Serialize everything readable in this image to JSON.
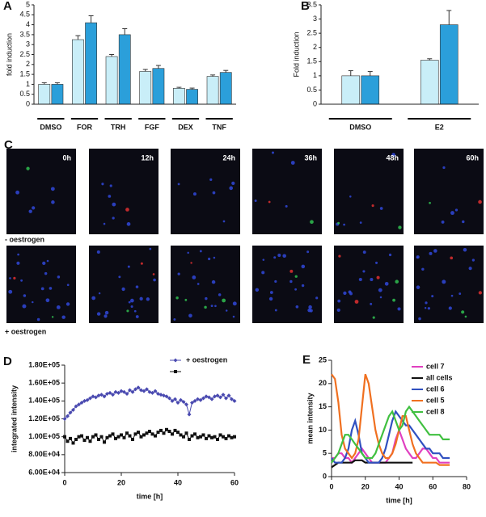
{
  "chart_data": [
    {
      "type": "bar",
      "panel_label": "A",
      "ylabel": "fold induction",
      "categories": [
        "DMSO",
        "FOR",
        "TRH",
        "FGF",
        "DEX",
        "TNF"
      ],
      "series": [
        {
          "color": "#c9eef8",
          "values": [
            1.0,
            3.25,
            2.4,
            1.65,
            0.8,
            1.4
          ],
          "errors": [
            0.08,
            0.2,
            0.1,
            0.1,
            0.05,
            0.07
          ]
        },
        {
          "color": "#2b9fda",
          "values": [
            1.0,
            4.1,
            3.5,
            1.8,
            0.75,
            1.6
          ],
          "errors": [
            0.08,
            0.35,
            0.3,
            0.15,
            0.06,
            0.1
          ]
        }
      ],
      "ylim": [
        0,
        5
      ],
      "yticks": [
        0,
        0.5,
        1,
        1.5,
        2,
        2.5,
        3,
        3.5,
        4,
        4.5,
        5
      ]
    },
    {
      "type": "bar",
      "panel_label": "B",
      "ylabel": "Fold induction",
      "categories": [
        "DMSO",
        "E2"
      ],
      "series": [
        {
          "color": "#c9eef8",
          "values": [
            1.0,
            1.55
          ],
          "errors": [
            0.18,
            0.05
          ]
        },
        {
          "color": "#2b9fda",
          "values": [
            1.0,
            2.8
          ],
          "errors": [
            0.15,
            0.5
          ]
        }
      ],
      "ylim": [
        0,
        3.5
      ],
      "yticks": [
        0,
        0.5,
        1,
        1.5,
        2,
        2.5,
        3,
        3.5
      ]
    },
    {
      "type": "line",
      "panel_label": "D",
      "ylabel": "integrated intensity",
      "xlabel": "time [h]",
      "x": [
        0,
        1,
        2,
        3,
        4,
        5,
        6,
        7,
        8,
        9,
        10,
        11,
        12,
        13,
        14,
        15,
        16,
        17,
        18,
        19,
        20,
        21,
        22,
        23,
        24,
        25,
        26,
        27,
        28,
        29,
        30,
        31,
        32,
        33,
        34,
        35,
        36,
        37,
        38,
        39,
        40,
        41,
        42,
        43,
        44,
        45,
        46,
        47,
        48,
        49,
        50,
        51,
        52,
        53,
        54,
        55,
        56,
        57,
        58,
        59,
        60
      ],
      "series": [
        {
          "name": "+ oestrogen",
          "color": "#4a4ab0",
          "marker": "diamond",
          "values": [
            120000,
            123000,
            127000,
            130000,
            134000,
            136000,
            138000,
            140000,
            141000,
            143000,
            145000,
            144000,
            146000,
            147000,
            145000,
            148000,
            149000,
            147000,
            150000,
            149000,
            151000,
            150000,
            148000,
            152000,
            150000,
            153000,
            155000,
            152000,
            151000,
            153000,
            150000,
            149000,
            151000,
            148000,
            147000,
            146000,
            145000,
            143000,
            140000,
            142000,
            138000,
            141000,
            139000,
            136000,
            125000,
            138000,
            140000,
            142000,
            141000,
            143000,
            145000,
            144000,
            142000,
            145000,
            146000,
            144000,
            147000,
            143000,
            146000,
            142000,
            140000
          ]
        },
        {
          "color": "#111111",
          "marker": "square",
          "values": [
            100000,
            95000,
            98000,
            93000,
            97000,
            100000,
            101000,
            96000,
            99000,
            95000,
            100000,
            102000,
            97000,
            100000,
            94000,
            99000,
            101000,
            103000,
            98000,
            100000,
            102000,
            99000,
            104000,
            101000,
            97000,
            103000,
            105000,
            100000,
            102000,
            104000,
            106000,
            103000,
            101000,
            105000,
            107000,
            104000,
            108000,
            106000,
            103000,
            107000,
            105000,
            102000,
            100000,
            104000,
            97000,
            101000,
            103000,
            99000,
            100000,
            102000,
            98000,
            101000,
            99000,
            100000,
            97000,
            102000,
            100000,
            98000,
            101000,
            99000,
            100000
          ]
        }
      ],
      "xlim": [
        0,
        60
      ],
      "xticks": [
        0,
        20,
        40,
        60
      ],
      "ylim": [
        60000,
        180000
      ],
      "yticks": [
        {
          "value": 60000,
          "label": "6.00E+04"
        },
        {
          "value": 80000,
          "label": "8.00E+04"
        },
        {
          "value": 100000,
          "label": "1.00E+05"
        },
        {
          "value": 120000,
          "label": "1.20E+05"
        },
        {
          "value": 140000,
          "label": "1.40E+05"
        },
        {
          "value": 160000,
          "label": "1.60E+05"
        },
        {
          "value": 180000,
          "label": "1.80E+05"
        }
      ]
    },
    {
      "type": "line",
      "panel_label": "E",
      "ylabel": "mean intensity",
      "xlabel": "time [h]",
      "x": [
        0,
        2,
        4,
        6,
        8,
        10,
        12,
        14,
        16,
        18,
        20,
        22,
        24,
        26,
        28,
        30,
        32,
        34,
        36,
        38,
        40,
        42,
        44,
        46,
        48,
        50,
        52,
        54,
        56,
        58,
        60,
        62,
        64,
        66,
        68,
        70
      ],
      "series": [
        {
          "name": "cell 7",
          "color": "#e040c0",
          "values": [
            4,
            4,
            5,
            5,
            4,
            4,
            3,
            4,
            5,
            6,
            5,
            4,
            3,
            3,
            3,
            3,
            3,
            4,
            5,
            8,
            10,
            8,
            6,
            5,
            4,
            4,
            5,
            6,
            6,
            5,
            4,
            4,
            3,
            3,
            3,
            3
          ]
        },
        {
          "name": "all cells",
          "color": "#111111",
          "values": [
            2,
            2.5,
            3,
            3,
            3,
            3,
            3,
            3.5,
            3.5,
            3.5,
            3,
            3,
            3,
            3,
            3,
            3,
            3,
            3,
            3,
            3,
            3,
            3,
            3,
            3,
            3,
            null,
            null,
            null,
            null,
            null,
            null,
            null,
            null,
            null,
            null,
            null
          ]
        },
        {
          "name": "cell 6",
          "color": "#3050c0",
          "values": [
            4,
            3,
            3,
            3,
            4,
            6,
            10,
            12,
            9,
            5,
            4,
            3,
            3,
            3,
            3,
            4,
            6,
            9,
            12,
            14,
            13,
            12,
            11,
            11,
            10,
            9,
            8,
            7,
            6,
            6,
            5,
            5,
            5,
            4,
            4,
            4
          ]
        },
        {
          "name": "cell 5",
          "color": "#f07020",
          "values": [
            22,
            21,
            16,
            9,
            6,
            5,
            4,
            5,
            8,
            15,
            22,
            20,
            15,
            10,
            7,
            5,
            4,
            4,
            5,
            7,
            10,
            13,
            13,
            10,
            7,
            5,
            4,
            3,
            3,
            3,
            3,
            3,
            2.5,
            2.5,
            2.5,
            2.5
          ]
        },
        {
          "name": "cell 8",
          "color": "#40c040",
          "values": [
            3,
            4,
            5,
            7,
            9,
            9,
            8,
            7,
            6,
            5,
            4,
            4,
            4,
            5,
            7,
            9,
            11,
            13,
            14,
            12,
            10,
            11,
            14,
            15,
            14,
            13,
            12,
            11,
            10,
            9,
            9,
            9,
            9,
            8,
            8,
            8
          ]
        }
      ],
      "xlim": [
        0,
        80
      ],
      "xticks": [
        0,
        20,
        40,
        60,
        80
      ],
      "ylim": [
        0,
        25
      ],
      "yticks": [
        0,
        5,
        10,
        15,
        20,
        25
      ]
    }
  ],
  "panel_c": {
    "panel_label": "C",
    "timepoints": [
      "0h",
      "12h",
      "24h",
      "36h",
      "48h",
      "60h"
    ],
    "conditions": [
      "- oestrogen",
      "+ oestrogen"
    ]
  }
}
